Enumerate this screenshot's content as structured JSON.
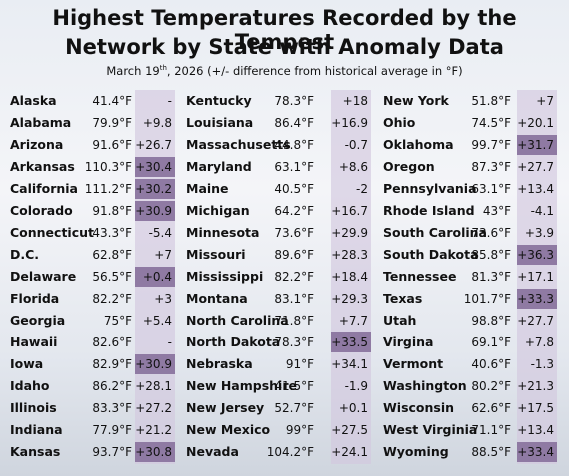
{
  "header": {
    "title_line1": "Highest Temperatures Recorded by the Tempest",
    "title_line2": "Network by State with Anomaly Data",
    "subtitle_date": "March 19",
    "subtitle_sup": "th",
    "subtitle_rest": ", 2026  (+/- difference from historical average in °F)"
  },
  "columns": [
    {
      "rows": [
        {
          "state": "Alaska",
          "temp": "41.4°F",
          "anomaly": "-"
        },
        {
          "state": "Alabama",
          "temp": "79.9°F",
          "anomaly": "+9.8"
        },
        {
          "state": "Arizona",
          "temp": "91.6°F",
          "anomaly": "+26.7"
        },
        {
          "state": "Arkansas",
          "temp": "110.3°F",
          "anomaly": "+30.4",
          "highlight": true
        },
        {
          "state": "California",
          "temp": "111.2°F",
          "anomaly": "+30.2",
          "highlight": true
        },
        {
          "state": "Colorado",
          "temp": "91.8°F",
          "anomaly": "+30.9",
          "highlight": true
        },
        {
          "state": "Connecticut",
          "temp": "43.3°F",
          "anomaly": "-5.4"
        },
        {
          "state": "D.C.",
          "temp": "62.8°F",
          "anomaly": "+7"
        },
        {
          "state": "Delaware",
          "temp": "56.5°F",
          "anomaly": "+0.4",
          "highlight": true
        },
        {
          "state": "Florida",
          "temp": "82.2°F",
          "anomaly": "+3"
        },
        {
          "state": "Georgia",
          "temp": "75°F",
          "anomaly": "+5.4"
        },
        {
          "state": "Hawaii",
          "temp": "82.6°F",
          "anomaly": "-"
        },
        {
          "state": "Iowa",
          "temp": "82.9°F",
          "anomaly": "+30.9",
          "highlight": true
        },
        {
          "state": "Idaho",
          "temp": "86.2°F",
          "anomaly": "+28.1"
        },
        {
          "state": "Illinois",
          "temp": "83.3°F",
          "anomaly": "+27.2"
        },
        {
          "state": "Indiana",
          "temp": "77.9°F",
          "anomaly": "+21.2"
        },
        {
          "state": "Kansas",
          "temp": "93.7°F",
          "anomaly": "+30.8",
          "highlight": true
        }
      ]
    },
    {
      "rows": [
        {
          "state": "Kentucky",
          "temp": "78.3°F",
          "anomaly": "+18"
        },
        {
          "state": "Louisiana",
          "temp": "86.4°F",
          "anomaly": "+16.9"
        },
        {
          "state": "Massachusetts",
          "temp": "44.8°F",
          "anomaly": "-0.7"
        },
        {
          "state": "Maryland",
          "temp": "63.1°F",
          "anomaly": "+8.6"
        },
        {
          "state": "Maine",
          "temp": "40.5°F",
          "anomaly": "-2"
        },
        {
          "state": "Michigan",
          "temp": "64.2°F",
          "anomaly": "+16.7"
        },
        {
          "state": "Minnesota",
          "temp": "73.6°F",
          "anomaly": "+29.9"
        },
        {
          "state": "Missouri",
          "temp": "89.6°F",
          "anomaly": "+28.3"
        },
        {
          "state": "Mississippi",
          "temp": "82.2°F",
          "anomaly": "+18.4"
        },
        {
          "state": "Montana",
          "temp": "83.1°F",
          "anomaly": "+29.3"
        },
        {
          "state": "North Carolina",
          "temp": "71.8°F",
          "anomaly": "+7.7"
        },
        {
          "state": "North Dakota",
          "temp": "78.3°F",
          "anomaly": "+33.5",
          "highlight": true
        },
        {
          "state": "Nebraska",
          "temp": "91°F",
          "anomaly": "+34.1"
        },
        {
          "state": "New Hampshire",
          "temp": "41.5°F",
          "anomaly": "-1.9"
        },
        {
          "state": "New Jersey",
          "temp": "52.7°F",
          "anomaly": "+0.1"
        },
        {
          "state": "New Mexico",
          "temp": "99°F",
          "anomaly": "+27.5"
        },
        {
          "state": "Nevada",
          "temp": "104.2°F",
          "anomaly": "+24.1"
        }
      ]
    },
    {
      "rows": [
        {
          "state": "New York",
          "temp": "51.8°F",
          "anomaly": "+7"
        },
        {
          "state": "Ohio",
          "temp": "74.5°F",
          "anomaly": "+20.1"
        },
        {
          "state": "Oklahoma",
          "temp": "99.7°F",
          "anomaly": "+31.7",
          "highlight": true
        },
        {
          "state": "Oregon",
          "temp": "87.3°F",
          "anomaly": "+27.7"
        },
        {
          "state": "Pennsylvania",
          "temp": "63.1°F",
          "anomaly": "+13.4"
        },
        {
          "state": "Rhode Island",
          "temp": "43°F",
          "anomaly": "-4.1"
        },
        {
          "state": "South Carolina",
          "temp": "73.6°F",
          "anomaly": "+3.9"
        },
        {
          "state": "South Dakota",
          "temp": "85.8°F",
          "anomaly": "+36.3",
          "highlight": true
        },
        {
          "state": "Tennessee",
          "temp": "81.3°F",
          "anomaly": "+17.1"
        },
        {
          "state": "Texas",
          "temp": "101.7°F",
          "anomaly": "+33.3",
          "highlight": true
        },
        {
          "state": "Utah",
          "temp": "98.8°F",
          "anomaly": "+27.7"
        },
        {
          "state": "Virgina",
          "temp": "69.1°F",
          "anomaly": "+7.8"
        },
        {
          "state": "Vermont",
          "temp": "40.6°F",
          "anomaly": "-1.3"
        },
        {
          "state": "Washington",
          "temp": "80.2°F",
          "anomaly": "+21.3"
        },
        {
          "state": "Wisconsin",
          "temp": "62.6°F",
          "anomaly": "+17.5"
        },
        {
          "state": "West Virginia",
          "temp": "71.1°F",
          "anomaly": "+13.4"
        },
        {
          "state": "Wyoming",
          "temp": "88.5°F",
          "anomaly": "+33.4",
          "highlight": true
        }
      ]
    }
  ]
}
